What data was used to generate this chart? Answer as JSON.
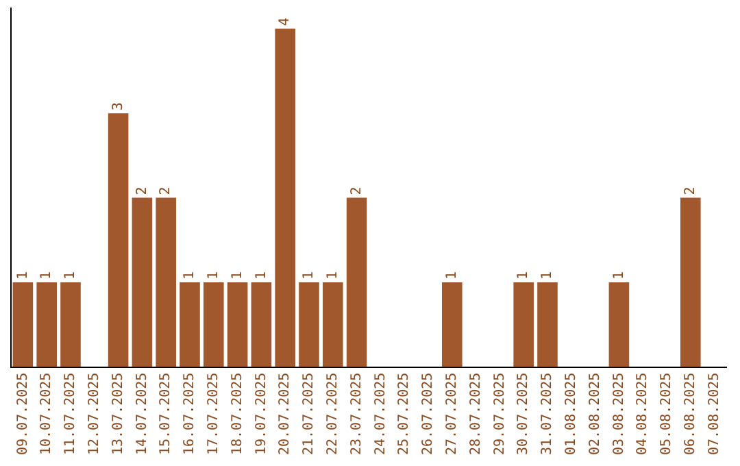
{
  "chart_data": {
    "type": "bar",
    "categories": [
      "09.07.2025",
      "10.07.2025",
      "11.07.2025",
      "12.07.2025",
      "13.07.2025",
      "14.07.2025",
      "15.07.2025",
      "16.07.2025",
      "17.07.2025",
      "18.07.2025",
      "19.07.2025",
      "20.07.2025",
      "21.07.2025",
      "22.07.2025",
      "23.07.2025",
      "24.07.2025",
      "25.07.2025",
      "26.07.2025",
      "27.07.2025",
      "28.07.2025",
      "29.07.2025",
      "30.07.2025",
      "31.07.2025",
      "01.08.2025",
      "02.08.2025",
      "03.08.2025",
      "04.08.2025",
      "05.08.2025",
      "06.08.2025",
      "07.08.2025"
    ],
    "values": [
      1,
      1,
      1,
      0,
      3,
      2,
      2,
      1,
      1,
      1,
      1,
      4,
      1,
      1,
      2,
      0,
      0,
      0,
      1,
      0,
      0,
      1,
      1,
      0,
      0,
      1,
      0,
      0,
      2,
      0
    ],
    "value_labels": [
      "1",
      "1",
      "1",
      null,
      "3",
      "2",
      "2",
      "1",
      "1",
      "1",
      "1",
      "4",
      "1",
      "1",
      "2",
      null,
      null,
      null,
      "1",
      null,
      null,
      "1",
      "1",
      null,
      null,
      "1",
      null,
      null,
      "2",
      null
    ],
    "color": "#a0582c",
    "grid": false,
    "legend": false,
    "tick_labels": "x"
  }
}
